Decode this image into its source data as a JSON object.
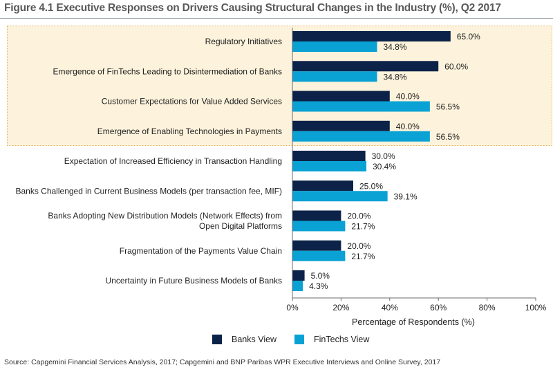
{
  "figure": {
    "title": "Figure 4.1 Executive Responses on Drivers Causing Structural Changes in the Industry (%), Q2 2017",
    "source": "Source:   Capgemini Financial Services Analysis, 2017; Capgemini and BNP Paribas WPR Executive Interviews and Online Survey, 2017"
  },
  "colors": {
    "banks": "#0c2248",
    "fintechs": "#0aa2d4",
    "highlight_fill": "#fdf3dc",
    "highlight_border": "#e3b35a"
  },
  "chart_data": {
    "type": "bar",
    "orientation": "horizontal",
    "categories": [
      [
        "Regulatory Initiatives"
      ],
      [
        "Emergence of FinTechs Leading to Disintermediation of Banks"
      ],
      [
        "Customer Expectations for Value Added Services"
      ],
      [
        "Emergence of Enabling Technologies in Payments"
      ],
      [
        "Expectation of Increased Efficiency in Transaction Handling"
      ],
      [
        "Banks Challenged in Current Business Models (per transaction fee, MIF)"
      ],
      [
        "Banks Adopting New Distribution Models (Network Effects) from",
        "Open Digital Platforms"
      ],
      [
        "Fragmentation of the Payments Value Chain"
      ],
      [
        "Uncertainty in Future Business Models of Banks"
      ]
    ],
    "series": [
      {
        "name": "Banks View",
        "values": [
          65.0,
          60.0,
          40.0,
          40.0,
          30.0,
          25.0,
          20.0,
          20.0,
          5.0
        ],
        "labels": [
          "65.0%",
          "60.0%",
          "40.0%",
          "40.0%",
          "30.0%",
          "25.0%",
          "20.0%",
          "20.0%",
          "5.0%"
        ]
      },
      {
        "name": "FinTechs View",
        "values": [
          34.8,
          34.8,
          56.5,
          56.5,
          30.4,
          39.1,
          21.7,
          21.7,
          4.3
        ],
        "labels": [
          "34.8%",
          "34.8%",
          "56.5%",
          "56.5%",
          "30.4%",
          "39.1%",
          "21.7%",
          "21.7%",
          "4.3%"
        ]
      }
    ],
    "xlabel": "Percentage of Respondents (%)",
    "xlim": [
      0,
      100
    ],
    "xticks": [
      "0%",
      "20%",
      "40%",
      "60%",
      "80%",
      "100%"
    ],
    "highlighted_categories": 4,
    "grid": false,
    "legend_position": "bottom"
  }
}
